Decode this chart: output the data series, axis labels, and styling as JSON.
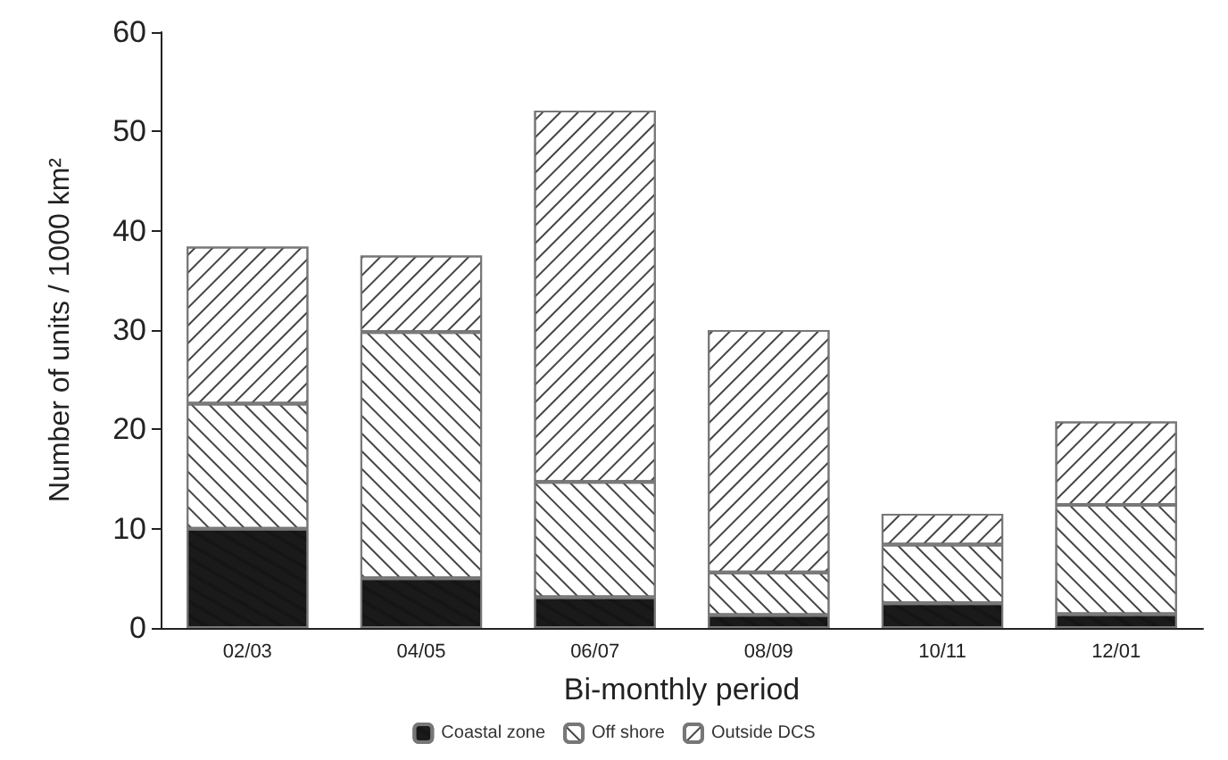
{
  "chart_data": {
    "type": "bar",
    "stacked": true,
    "xlabel": "Bi-monthly period",
    "ylabel": "Number of units / 1000 km²",
    "categories": [
      "02/03",
      "04/05",
      "06/07",
      "08/09",
      "10/11",
      "12/01"
    ],
    "series": [
      {
        "name": "Coastal zone",
        "color": "#1a1a1a",
        "values": [
          10,
          5,
          3.1,
          1.3,
          2.5,
          1.4
        ]
      },
      {
        "name": "Off shore",
        "color": "#ffffff",
        "values": [
          12.6,
          24.8,
          11.6,
          4.3,
          5.9,
          11.0
        ]
      },
      {
        "name": "Outside DCS",
        "color": "#ffffff",
        "values": [
          15.8,
          7.7,
          37.4,
          24.4,
          3.1,
          8.4
        ]
      }
    ],
    "ylim": [
      0,
      60
    ],
    "yticks": [
      0,
      10,
      20,
      30,
      40,
      50,
      60
    ],
    "grid": false,
    "legend": "bottom"
  }
}
